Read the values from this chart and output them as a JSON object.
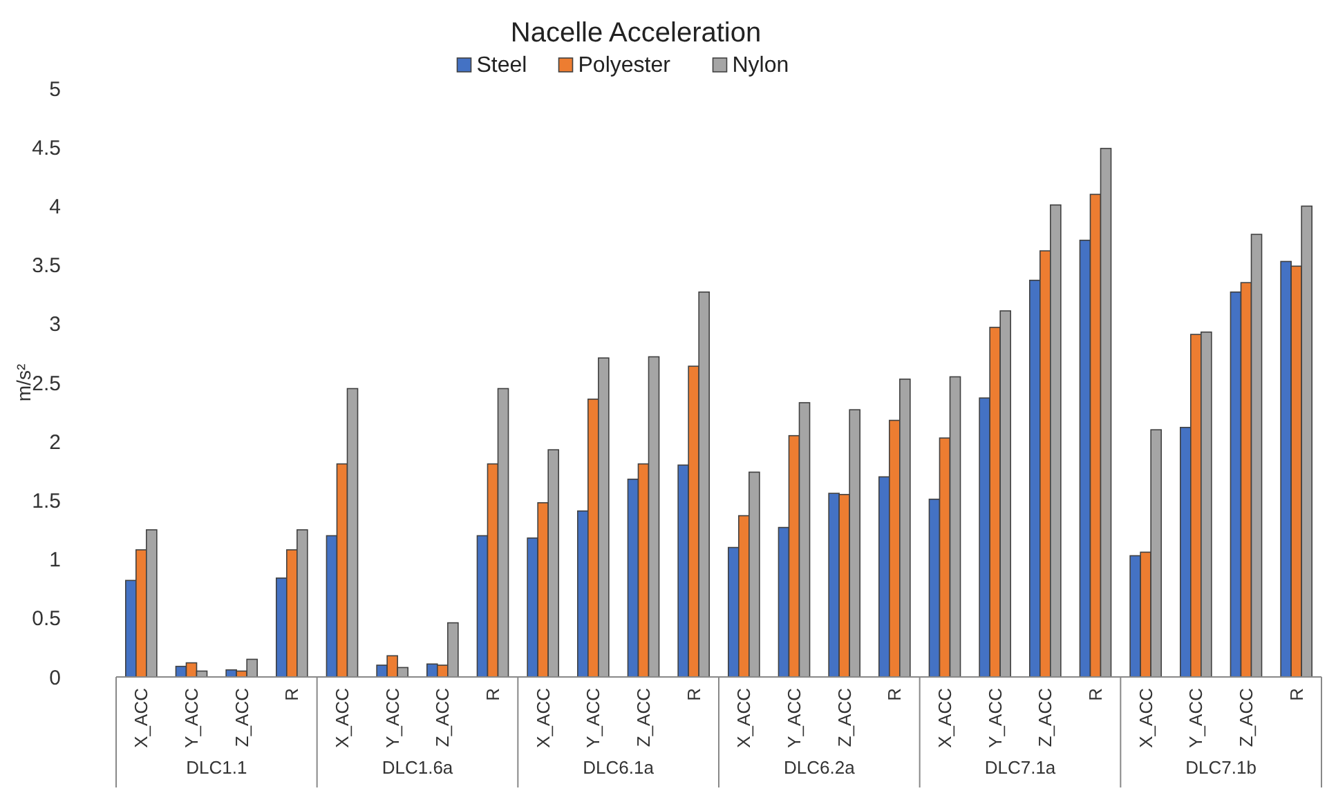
{
  "chart_data": {
    "type": "bar",
    "title": "Nacelle Acceleration",
    "ylabel": "m/s²",
    "categories": [
      "X_ACC",
      "Y_ACC",
      "Z_ACC",
      "R",
      "X_ACC",
      "Y_ACC",
      "Z_ACC",
      "R",
      "X_ACC",
      "Y_ACC",
      "Z_ACC",
      "R",
      "X_ACC",
      "Y_ACC",
      "Z_ACC",
      "R",
      "X_ACC",
      "Y_ACC",
      "Z_ACC",
      "R",
      "X_ACC",
      "Y_ACC",
      "Z_ACC",
      "R"
    ],
    "annotations": [
      "DLC1.1",
      "DLC1.6a",
      "DLC6.1a",
      "DLC6.2a",
      "DLC7.1a",
      "DLC7.1b"
    ],
    "series": [
      {
        "name": "Steel",
        "color": "#4472c4",
        "values": [
          0.82,
          0.09,
          0.06,
          0.84,
          1.2,
          0.1,
          0.11,
          1.2,
          1.18,
          1.41,
          1.68,
          1.8,
          1.1,
          1.27,
          1.56,
          1.7,
          1.51,
          2.37,
          3.37,
          3.71,
          1.03,
          2.12,
          3.27,
          3.53
        ]
      },
      {
        "name": "Polyester",
        "color": "#ed7d31",
        "values": [
          1.08,
          0.12,
          0.05,
          1.08,
          1.81,
          0.18,
          0.1,
          1.81,
          1.48,
          2.36,
          1.81,
          2.64,
          1.37,
          2.05,
          1.55,
          2.18,
          2.03,
          2.97,
          3.62,
          4.1,
          1.06,
          2.91,
          3.35,
          3.49
        ]
      },
      {
        "name": "Nylon",
        "color": "#a5a5a5",
        "values": [
          1.25,
          0.05,
          0.15,
          1.25,
          2.45,
          0.08,
          0.46,
          2.45,
          1.93,
          2.71,
          2.72,
          3.27,
          1.74,
          2.33,
          2.27,
          2.53,
          2.55,
          3.11,
          4.01,
          4.49,
          2.1,
          2.93,
          3.76,
          4.0
        ]
      }
    ],
    "ylim": [
      0,
      5
    ],
    "yticks": [
      0,
      0.5,
      1,
      1.5,
      2,
      2.5,
      3,
      3.5,
      4,
      4.5,
      5
    ],
    "legend": "top"
  }
}
